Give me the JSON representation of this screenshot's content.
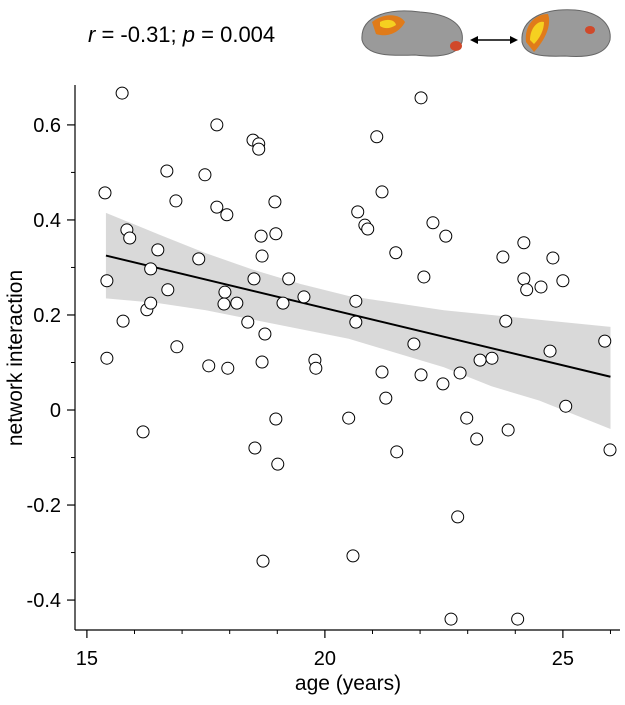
{
  "chart_data": {
    "type": "scatter",
    "annotation": [
      {
        "text": "r",
        "italic": true
      },
      {
        "text": " = -0.31; ",
        "italic": false
      },
      {
        "text": "p",
        "italic": true
      },
      {
        "text": " = 0.004",
        "italic": false
      }
    ],
    "x_label": "age (years)",
    "y_label": "network interaction",
    "xlim": [
      14.75,
      26.2
    ],
    "ylim": [
      -0.463,
      0.684
    ],
    "xticks": [
      15,
      20,
      25
    ],
    "x_minor_ticks": [
      16,
      17,
      18,
      19,
      21,
      22,
      23,
      24,
      26
    ],
    "yticks": [
      0.6,
      0.4,
      0.2,
      0,
      -0.2,
      -0.4
    ],
    "y_minor_ticks": [
      0.5,
      0.3,
      0.1,
      -0.1,
      -0.3
    ],
    "marker_color": "#ffffff",
    "marker_edge": "#000000",
    "x": [
      15.74,
      15.38,
      15.42,
      15.42,
      15.76,
      15.84,
      15.9,
      16.18,
      16.26,
      16.34,
      16.34,
      16.49,
      16.68,
      16.7,
      16.87,
      16.89,
      17.35,
      17.48,
      17.56,
      17.73,
      17.73,
      17.9,
      17.88,
      17.94,
      17.96,
      18.15,
      18.38,
      18.49,
      18.61,
      18.61,
      18.51,
      18.53,
      18.66,
      18.68,
      18.68,
      18.74,
      18.7,
      18.95,
      18.97,
      18.97,
      19.01,
      19.12,
      19.24,
      19.56,
      19.79,
      19.81,
      20.5,
      20.59,
      20.65,
      20.65,
      20.69,
      20.84,
      20.9,
      21.09,
      21.2,
      21.2,
      21.28,
      21.49,
      21.51,
      21.87,
      22.02,
      22.02,
      22.08,
      22.27,
      22.48,
      22.54,
      22.65,
      22.79,
      22.84,
      22.98,
      23.19,
      23.26,
      23.51,
      23.74,
      23.8,
      23.85,
      24.05,
      24.18,
      24.18,
      24.24,
      24.54,
      24.73,
      24.79,
      25.0,
      25.06,
      25.88,
      25.99
    ],
    "values": [
      0.667,
      0.457,
      0.272,
      0.109,
      0.187,
      0.379,
      0.362,
      -0.046,
      0.211,
      0.297,
      0.225,
      0.337,
      0.503,
      0.253,
      0.44,
      0.133,
      0.318,
      0.495,
      0.093,
      0.6,
      0.427,
      0.248,
      0.223,
      0.411,
      0.088,
      0.225,
      0.185,
      0.568,
      0.56,
      0.549,
      0.276,
      -0.08,
      0.366,
      0.324,
      0.101,
      0.16,
      -0.318,
      0.438,
      0.371,
      -0.019,
      -0.114,
      0.225,
      0.276,
      0.238,
      0.105,
      0.088,
      -0.017,
      -0.307,
      0.229,
      0.185,
      0.417,
      0.389,
      0.381,
      0.575,
      0.459,
      0.08,
      0.025,
      0.331,
      -0.088,
      0.139,
      0.657,
      0.074,
      0.28,
      0.394,
      0.055,
      0.366,
      -0.44,
      -0.225,
      0.078,
      -0.017,
      -0.061,
      0.105,
      0.109,
      0.322,
      0.187,
      -0.042,
      -0.44,
      0.352,
      0.276,
      0.253,
      0.259,
      0.124,
      0.32,
      0.272,
      0.008,
      0.145,
      -0.084
    ],
    "fit": {
      "color": "#000000",
      "x": [
        15.4,
        26
      ],
      "values": [
        0.325,
        0.07
      ]
    },
    "band": {
      "color": "#d9d9d9",
      "x": [
        15.4,
        16.5,
        17.5,
        18.5,
        19.5,
        20.5,
        21.5,
        22.5,
        23.5,
        24.5,
        26
      ],
      "upper": [
        0.415,
        0.37,
        0.33,
        0.295,
        0.265,
        0.24,
        0.225,
        0.21,
        0.2,
        0.19,
        0.175
      ],
      "lower": [
        0.235,
        0.225,
        0.21,
        0.19,
        0.17,
        0.15,
        0.12,
        0.09,
        0.05,
        0.02,
        -0.04
      ]
    }
  }
}
